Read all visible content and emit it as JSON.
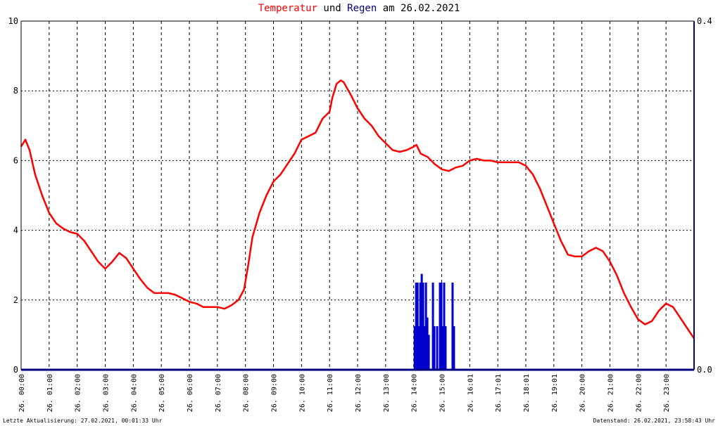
{
  "title": {
    "part1": "Temperatur",
    "part2": " und ",
    "part3": "Regen",
    "part4": " am 26.02.2021"
  },
  "footer": {
    "left": "Letzte Aktualisierung: 27.02.2021, 00:01:33 Uhr",
    "right": "Datenstand: 26.02.2021, 23:58:43 Uhr"
  },
  "colors": {
    "temperature": "#ff0000",
    "rain": "#0000cc",
    "axis": "#000080",
    "grid": "#000000"
  },
  "chart_data": {
    "type": "line",
    "x_tick_labels": [
      "26. 00:00",
      "26. 01:00",
      "26. 02:00",
      "26. 03:00",
      "26. 04:00",
      "26. 05:00",
      "26. 06:00",
      "26. 07:00",
      "26. 08:00",
      "26. 09:00",
      "26. 10:00",
      "26. 11:00",
      "26. 12:00",
      "26. 13:00",
      "26. 14:00",
      "26. 15:00",
      "26. 16:01",
      "26. 17:01",
      "26. 18:01",
      "26. 19:01",
      "26. 20:00",
      "26. 21:00",
      "26. 22:00",
      "26. 23:00"
    ],
    "xlim_hours": [
      0,
      24
    ],
    "y_left": {
      "lim": [
        0,
        10
      ],
      "ticks": [
        "0",
        "2",
        "4",
        "6",
        "8",
        "10"
      ]
    },
    "y_right": {
      "lim": [
        0,
        0.4
      ],
      "ticks": [
        "0.0",
        "0.4"
      ]
    },
    "grid": true,
    "series": [
      {
        "name": "Temperatur",
        "axis": "left",
        "points": [
          [
            0.0,
            6.4
          ],
          [
            0.15,
            6.6
          ],
          [
            0.3,
            6.3
          ],
          [
            0.5,
            5.6
          ],
          [
            0.75,
            5.0
          ],
          [
            1.0,
            4.5
          ],
          [
            1.25,
            4.2
          ],
          [
            1.5,
            4.05
          ],
          [
            1.75,
            3.95
          ],
          [
            2.0,
            3.9
          ],
          [
            2.25,
            3.7
          ],
          [
            2.5,
            3.4
          ],
          [
            2.75,
            3.1
          ],
          [
            3.0,
            2.9
          ],
          [
            3.25,
            3.1
          ],
          [
            3.5,
            3.35
          ],
          [
            3.75,
            3.2
          ],
          [
            4.0,
            2.9
          ],
          [
            4.25,
            2.6
          ],
          [
            4.5,
            2.35
          ],
          [
            4.75,
            2.2
          ],
          [
            5.0,
            2.2
          ],
          [
            5.25,
            2.2
          ],
          [
            5.5,
            2.15
          ],
          [
            5.75,
            2.05
          ],
          [
            6.0,
            1.95
          ],
          [
            6.25,
            1.9
          ],
          [
            6.5,
            1.8
          ],
          [
            6.75,
            1.8
          ],
          [
            7.0,
            1.8
          ],
          [
            7.25,
            1.75
          ],
          [
            7.5,
            1.85
          ],
          [
            7.75,
            2.0
          ],
          [
            7.95,
            2.3
          ],
          [
            8.1,
            3.0
          ],
          [
            8.25,
            3.8
          ],
          [
            8.5,
            4.5
          ],
          [
            8.75,
            5.0
          ],
          [
            9.0,
            5.4
          ],
          [
            9.25,
            5.6
          ],
          [
            9.5,
            5.9
          ],
          [
            9.75,
            6.2
          ],
          [
            10.0,
            6.6
          ],
          [
            10.25,
            6.7
          ],
          [
            10.5,
            6.8
          ],
          [
            10.75,
            7.2
          ],
          [
            11.0,
            7.4
          ],
          [
            11.1,
            7.8
          ],
          [
            11.25,
            8.2
          ],
          [
            11.4,
            8.3
          ],
          [
            11.5,
            8.25
          ],
          [
            11.75,
            7.9
          ],
          [
            12.0,
            7.5
          ],
          [
            12.25,
            7.2
          ],
          [
            12.5,
            7.0
          ],
          [
            12.75,
            6.7
          ],
          [
            13.0,
            6.5
          ],
          [
            13.25,
            6.3
          ],
          [
            13.5,
            6.25
          ],
          [
            13.75,
            6.3
          ],
          [
            14.0,
            6.4
          ],
          [
            14.1,
            6.45
          ],
          [
            14.25,
            6.2
          ],
          [
            14.5,
            6.1
          ],
          [
            14.75,
            5.9
          ],
          [
            15.0,
            5.75
          ],
          [
            15.25,
            5.7
          ],
          [
            15.5,
            5.8
          ],
          [
            15.75,
            5.85
          ],
          [
            16.0,
            6.0
          ],
          [
            16.25,
            6.05
          ],
          [
            16.5,
            6.0
          ],
          [
            16.75,
            6.0
          ],
          [
            17.0,
            5.95
          ],
          [
            17.25,
            5.95
          ],
          [
            17.5,
            5.95
          ],
          [
            17.75,
            5.95
          ],
          [
            18.0,
            5.85
          ],
          [
            18.25,
            5.6
          ],
          [
            18.5,
            5.2
          ],
          [
            18.75,
            4.7
          ],
          [
            19.0,
            4.2
          ],
          [
            19.25,
            3.7
          ],
          [
            19.5,
            3.3
          ],
          [
            19.75,
            3.25
          ],
          [
            20.0,
            3.25
          ],
          [
            20.25,
            3.4
          ],
          [
            20.5,
            3.5
          ],
          [
            20.75,
            3.4
          ],
          [
            21.0,
            3.1
          ],
          [
            21.25,
            2.7
          ],
          [
            21.5,
            2.2
          ],
          [
            21.75,
            1.8
          ],
          [
            22.0,
            1.45
          ],
          [
            22.25,
            1.3
          ],
          [
            22.5,
            1.4
          ],
          [
            22.75,
            1.7
          ],
          [
            23.0,
            1.9
          ],
          [
            23.25,
            1.8
          ],
          [
            23.5,
            1.5
          ],
          [
            23.75,
            1.2
          ],
          [
            24.0,
            0.9
          ]
        ]
      },
      {
        "name": "Regen",
        "axis": "right",
        "bars": [
          [
            14.0,
            0.05
          ],
          [
            14.05,
            0.1
          ],
          [
            14.1,
            0.1
          ],
          [
            14.15,
            0.05
          ],
          [
            14.2,
            0.1
          ],
          [
            14.25,
            0.11
          ],
          [
            14.3,
            0.1
          ],
          [
            14.35,
            0.05
          ],
          [
            14.4,
            0.1
          ],
          [
            14.45,
            0.06
          ],
          [
            14.5,
            0.04
          ],
          [
            14.65,
            0.1
          ],
          [
            14.7,
            0.05
          ],
          [
            14.8,
            0.05
          ],
          [
            14.9,
            0.1
          ],
          [
            14.95,
            0.1
          ],
          [
            15.0,
            0.05
          ],
          [
            15.05,
            0.1
          ],
          [
            15.1,
            0.05
          ],
          [
            15.35,
            0.1
          ],
          [
            15.4,
            0.05
          ]
        ]
      }
    ]
  }
}
